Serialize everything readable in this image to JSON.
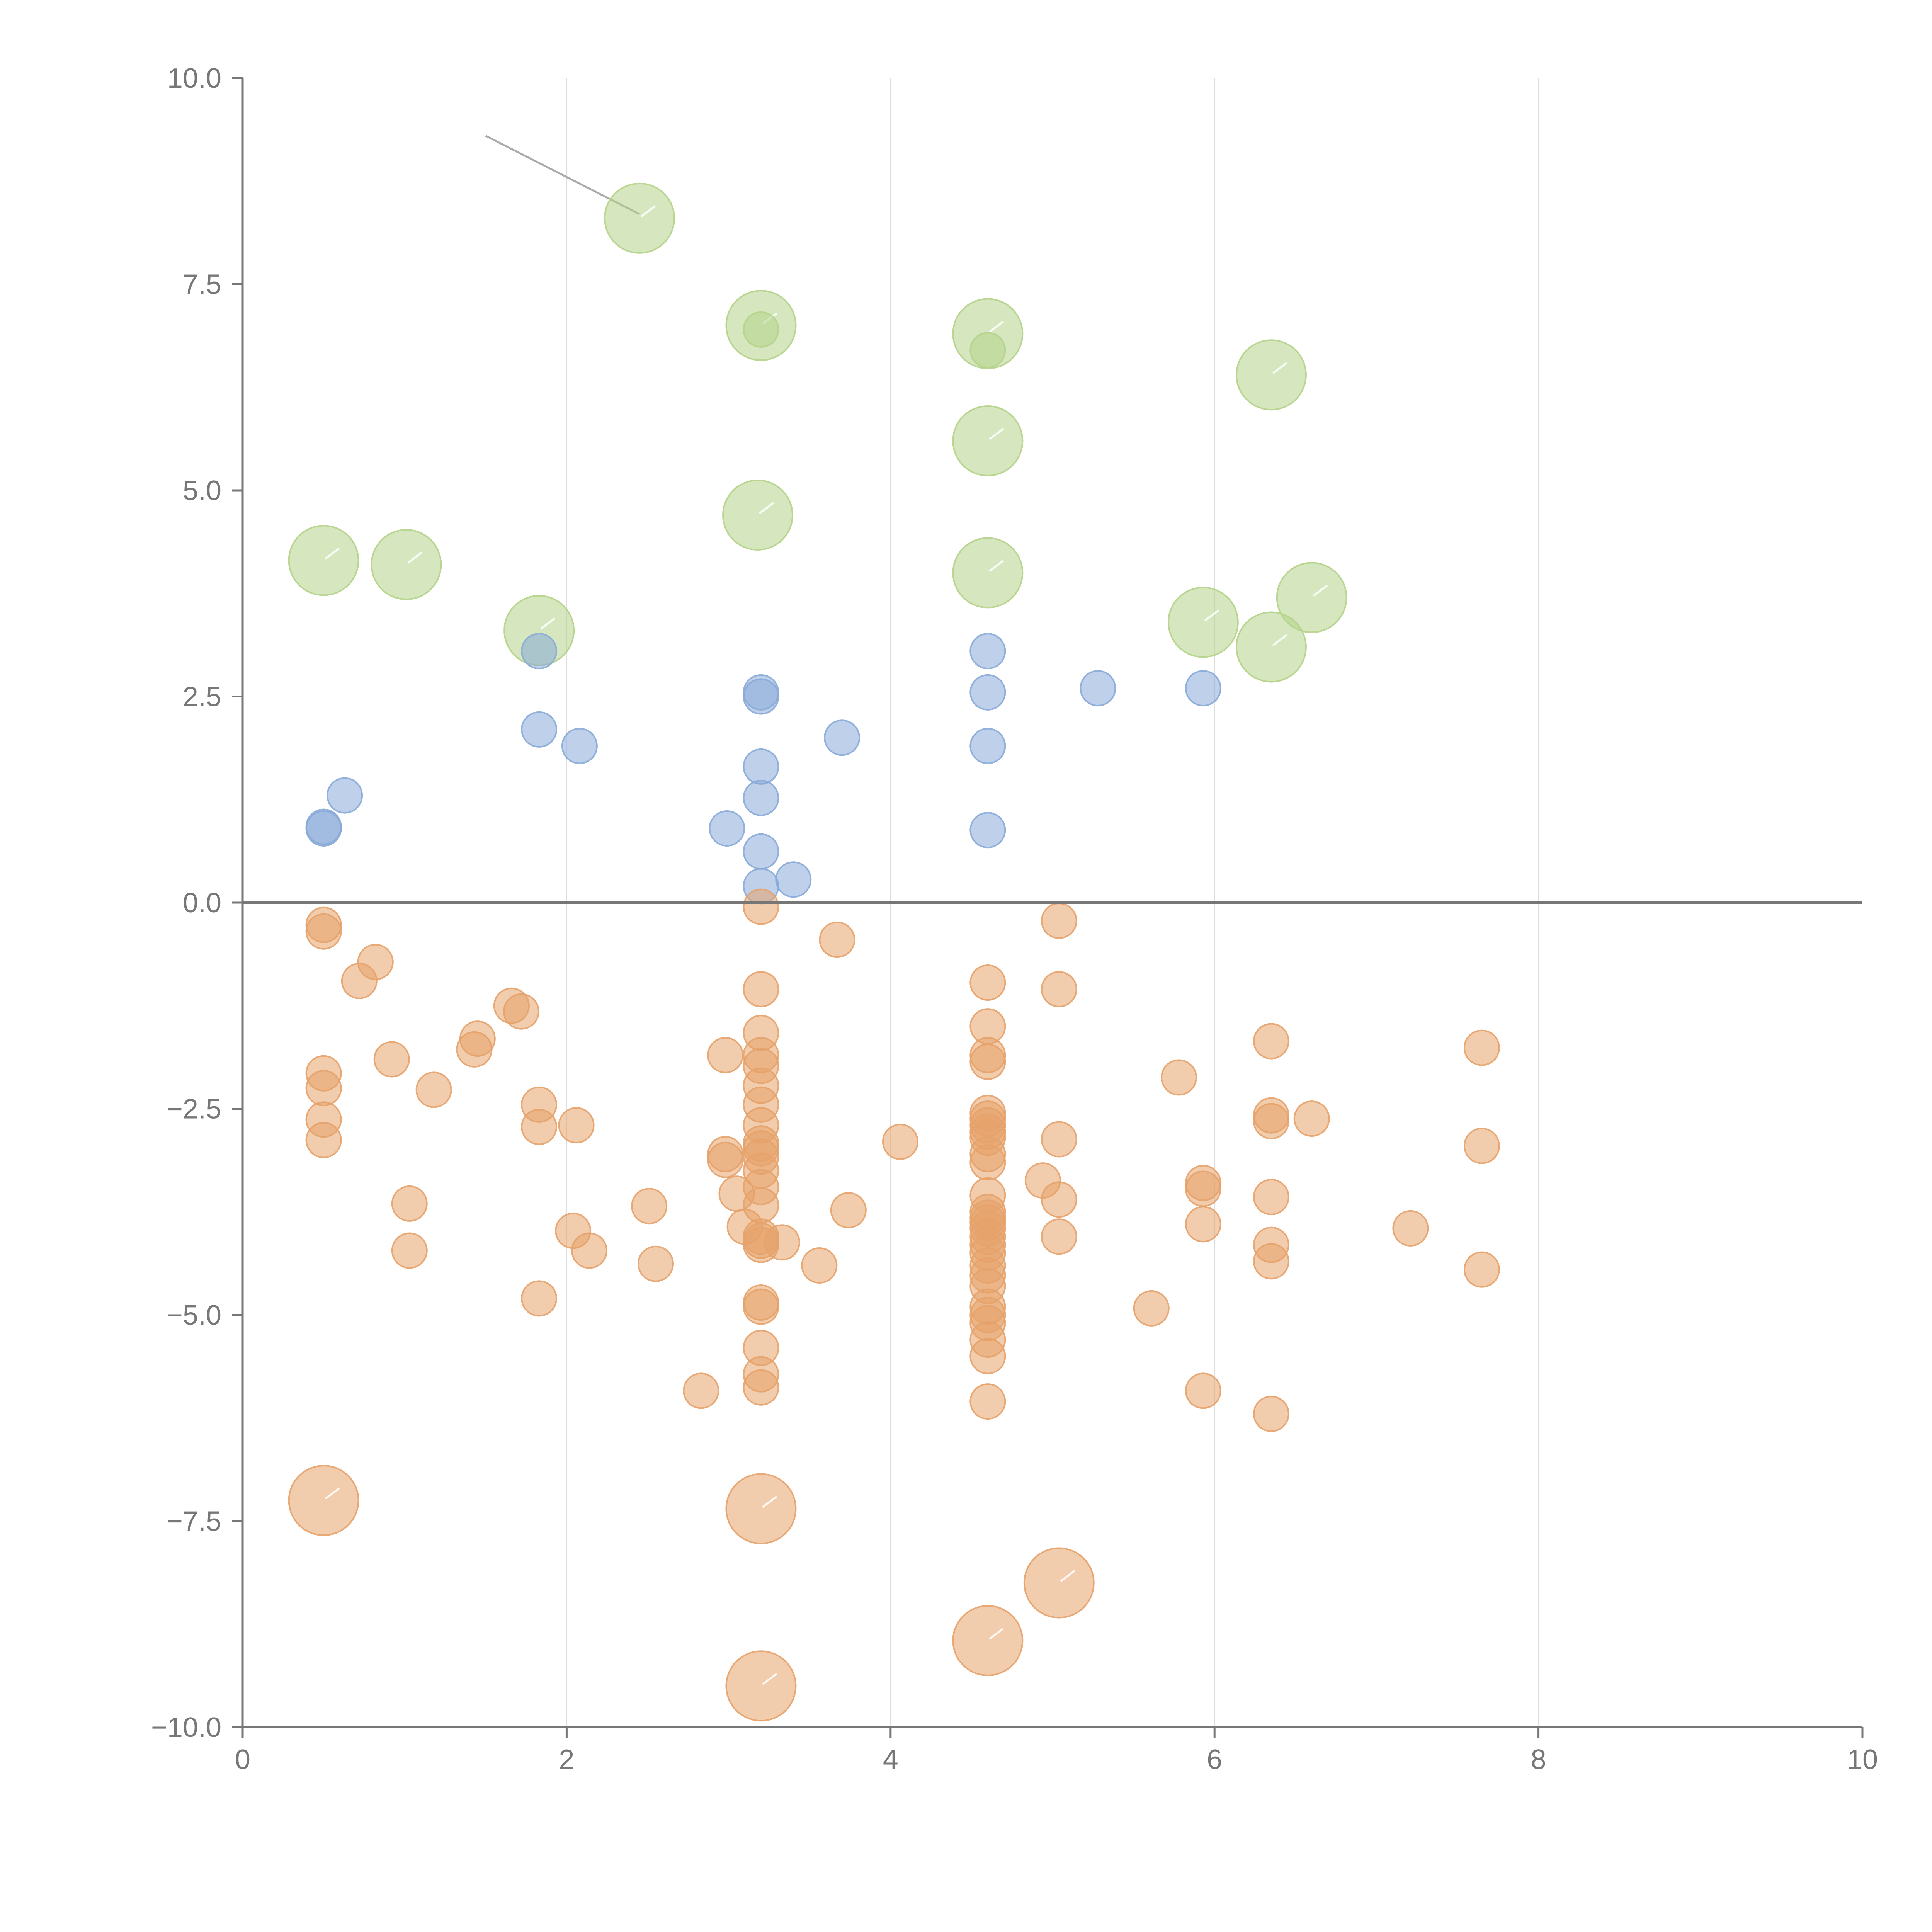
{
  "chart_data": {
    "type": "scatter",
    "title": "",
    "xlabel": "",
    "ylabel": "",
    "xlim": [
      0,
      10
    ],
    "ylim": [
      -10,
      10
    ],
    "x_ticks": [
      0,
      2,
      4,
      6,
      8,
      10
    ],
    "x_tick_labels": [
      "0",
      "2",
      "4",
      "6",
      "8",
      "10"
    ],
    "y_ticks": [
      -10,
      -7.5,
      -5,
      -2.5,
      0,
      2.5,
      5,
      7.5,
      10
    ],
    "y_tick_labels": [
      "−10.0",
      "−7.5",
      "−5.0",
      "−2.5",
      "0.0",
      "2.5",
      "5.0",
      "7.5",
      "10.0"
    ],
    "vertical_gridlines_at": [
      2,
      4,
      6,
      8
    ],
    "reference_line_y": 0,
    "colors": {
      "green": "#b5d38a",
      "blue": "#88aad8",
      "orange": "#e6a26a",
      "axis": "#777777",
      "grid": "#dddddd",
      "leader": "#aaaaaa"
    },
    "series": [
      {
        "name": "green",
        "color": "#b5d38a",
        "size": "large",
        "points": [
          {
            "x": 2.45,
            "y": 8.3
          },
          {
            "x": 3.2,
            "y": 7.0
          },
          {
            "x": 4.6,
            "y": 6.9
          },
          {
            "x": 6.35,
            "y": 6.4
          },
          {
            "x": 4.6,
            "y": 5.6
          },
          {
            "x": 3.18,
            "y": 4.7
          },
          {
            "x": 0.5,
            "y": 4.15
          },
          {
            "x": 1.01,
            "y": 4.1
          },
          {
            "x": 4.6,
            "y": 4.0
          },
          {
            "x": 6.6,
            "y": 3.7
          },
          {
            "x": 5.93,
            "y": 3.4
          },
          {
            "x": 1.83,
            "y": 3.3
          },
          {
            "x": 6.35,
            "y": 3.1
          },
          {
            "x": 3.2,
            "y": 6.95,
            "size": "small"
          },
          {
            "x": 4.6,
            "y": 6.7,
            "size": "small"
          }
        ]
      },
      {
        "name": "blue",
        "color": "#88aad8",
        "size": "small",
        "points": [
          {
            "x": 1.83,
            "y": 3.05
          },
          {
            "x": 4.6,
            "y": 3.05
          },
          {
            "x": 3.2,
            "y": 2.55
          },
          {
            "x": 3.2,
            "y": 2.5
          },
          {
            "x": 4.6,
            "y": 2.55
          },
          {
            "x": 5.28,
            "y": 2.6
          },
          {
            "x": 5.93,
            "y": 2.6
          },
          {
            "x": 1.83,
            "y": 2.1
          },
          {
            "x": 2.08,
            "y": 1.9
          },
          {
            "x": 3.7,
            "y": 2.0
          },
          {
            "x": 4.6,
            "y": 1.9
          },
          {
            "x": 3.2,
            "y": 1.65
          },
          {
            "x": 0.63,
            "y": 1.3
          },
          {
            "x": 3.2,
            "y": 1.27
          },
          {
            "x": 0.5,
            "y": 0.9
          },
          {
            "x": 0.5,
            "y": 0.92
          },
          {
            "x": 2.99,
            "y": 0.9
          },
          {
            "x": 4.6,
            "y": 0.88
          },
          {
            "x": 3.2,
            "y": 0.62
          },
          {
            "x": 3.4,
            "y": 0.28
          },
          {
            "x": 3.2,
            "y": 0.2
          }
        ]
      },
      {
        "name": "orange",
        "color": "#e6a26a",
        "size": "small",
        "points": [
          {
            "x": 3.2,
            "y": -0.05
          },
          {
            "x": 0.5,
            "y": -0.27
          },
          {
            "x": 0.5,
            "y": -0.35
          },
          {
            "x": 5.04,
            "y": -0.22
          },
          {
            "x": 3.67,
            "y": -0.45
          },
          {
            "x": 0.82,
            "y": -0.72
          },
          {
            "x": 0.72,
            "y": -0.95
          },
          {
            "x": 4.6,
            "y": -0.97
          },
          {
            "x": 3.2,
            "y": -1.05
          },
          {
            "x": 5.04,
            "y": -1.05
          },
          {
            "x": 1.66,
            "y": -1.25
          },
          {
            "x": 1.72,
            "y": -1.32
          },
          {
            "x": 4.6,
            "y": -1.5
          },
          {
            "x": 3.2,
            "y": -1.58
          },
          {
            "x": 1.45,
            "y": -1.65
          },
          {
            "x": 1.43,
            "y": -1.78
          },
          {
            "x": 6.35,
            "y": -1.68
          },
          {
            "x": 7.65,
            "y": -1.76
          },
          {
            "x": 3.2,
            "y": -1.85
          },
          {
            "x": 2.98,
            "y": -1.85
          },
          {
            "x": 4.6,
            "y": -1.85
          },
          {
            "x": 4.6,
            "y": -1.93
          },
          {
            "x": 0.92,
            "y": -1.9
          },
          {
            "x": 3.2,
            "y": -1.98
          },
          {
            "x": 0.5,
            "y": -2.07
          },
          {
            "x": 5.78,
            "y": -2.12
          },
          {
            "x": 3.2,
            "y": -2.22
          },
          {
            "x": 0.5,
            "y": -2.25
          },
          {
            "x": 1.18,
            "y": -2.27
          },
          {
            "x": 3.2,
            "y": -2.45
          },
          {
            "x": 1.83,
            "y": -2.45
          },
          {
            "x": 4.6,
            "y": -2.55
          },
          {
            "x": 4.6,
            "y": -2.62
          },
          {
            "x": 6.35,
            "y": -2.58
          },
          {
            "x": 6.6,
            "y": -2.62
          },
          {
            "x": 0.5,
            "y": -2.63
          },
          {
            "x": 6.35,
            "y": -2.65
          },
          {
            "x": 3.2,
            "y": -2.7
          },
          {
            "x": 4.6,
            "y": -2.7
          },
          {
            "x": 1.83,
            "y": -2.72
          },
          {
            "x": 2.06,
            "y": -2.7
          },
          {
            "x": 4.6,
            "y": -2.78
          },
          {
            "x": 4.6,
            "y": -2.85
          },
          {
            "x": 5.04,
            "y": -2.87
          },
          {
            "x": 0.5,
            "y": -2.88
          },
          {
            "x": 4.06,
            "y": -2.9
          },
          {
            "x": 3.2,
            "y": -2.92
          },
          {
            "x": 3.2,
            "y": -2.98
          },
          {
            "x": 7.65,
            "y": -2.95
          },
          {
            "x": 2.98,
            "y": -3.05
          },
          {
            "x": 4.6,
            "y": -3.05
          },
          {
            "x": 3.2,
            "y": -3.08
          },
          {
            "x": 2.98,
            "y": -3.12
          },
          {
            "x": 4.6,
            "y": -3.15
          },
          {
            "x": 3.2,
            "y": -3.25
          },
          {
            "x": 4.94,
            "y": -3.37
          },
          {
            "x": 5.93,
            "y": -3.4
          },
          {
            "x": 5.93,
            "y": -3.47
          },
          {
            "x": 3.2,
            "y": -3.45
          },
          {
            "x": 3.05,
            "y": -3.53
          },
          {
            "x": 4.6,
            "y": -3.55
          },
          {
            "x": 6.35,
            "y": -3.57
          },
          {
            "x": 5.04,
            "y": -3.6
          },
          {
            "x": 1.03,
            "y": -3.65
          },
          {
            "x": 2.51,
            "y": -3.68
          },
          {
            "x": 3.2,
            "y": -3.67
          },
          {
            "x": 4.6,
            "y": -3.75
          },
          {
            "x": 3.74,
            "y": -3.73
          },
          {
            "x": 4.6,
            "y": -3.82
          },
          {
            "x": 4.6,
            "y": -3.88
          },
          {
            "x": 5.93,
            "y": -3.9
          },
          {
            "x": 7.21,
            "y": -3.95
          },
          {
            "x": 3.1,
            "y": -3.93
          },
          {
            "x": 4.6,
            "y": -3.95
          },
          {
            "x": 2.04,
            "y": -3.98
          },
          {
            "x": 3.2,
            "y": -4.05
          },
          {
            "x": 5.04,
            "y": -4.05
          },
          {
            "x": 4.6,
            "y": -4.05
          },
          {
            "x": 3.2,
            "y": -4.1
          },
          {
            "x": 3.33,
            "y": -4.12
          },
          {
            "x": 3.2,
            "y": -4.15
          },
          {
            "x": 6.35,
            "y": -4.15
          },
          {
            "x": 4.6,
            "y": -4.15
          },
          {
            "x": 1.03,
            "y": -4.22
          },
          {
            "x": 2.14,
            "y": -4.22
          },
          {
            "x": 4.6,
            "y": -4.25
          },
          {
            "x": 6.35,
            "y": -4.35
          },
          {
            "x": 2.55,
            "y": -4.38
          },
          {
            "x": 3.56,
            "y": -4.4
          },
          {
            "x": 4.6,
            "y": -4.4
          },
          {
            "x": 7.65,
            "y": -4.45
          },
          {
            "x": 4.6,
            "y": -4.52
          },
          {
            "x": 4.6,
            "y": -4.65
          },
          {
            "x": 1.83,
            "y": -4.8
          },
          {
            "x": 3.2,
            "y": -4.85
          },
          {
            "x": 3.2,
            "y": -4.9
          },
          {
            "x": 4.6,
            "y": -4.9
          },
          {
            "x": 5.61,
            "y": -4.92
          },
          {
            "x": 4.6,
            "y": -5.0
          },
          {
            "x": 4.6,
            "y": -5.1
          },
          {
            "x": 4.6,
            "y": -5.3
          },
          {
            "x": 3.2,
            "y": -5.4
          },
          {
            "x": 4.6,
            "y": -5.5
          },
          {
            "x": 3.2,
            "y": -5.72
          },
          {
            "x": 3.2,
            "y": -5.88
          },
          {
            "x": 2.83,
            "y": -5.92
          },
          {
            "x": 5.93,
            "y": -5.92
          },
          {
            "x": 4.6,
            "y": -6.05
          },
          {
            "x": 6.35,
            "y": -6.2
          },
          {
            "x": 0.5,
            "y": -7.25,
            "size": "large"
          },
          {
            "x": 3.2,
            "y": -7.35,
            "size": "large"
          },
          {
            "x": 5.04,
            "y": -8.25,
            "size": "large"
          },
          {
            "x": 4.6,
            "y": -8.95,
            "size": "large"
          },
          {
            "x": 3.2,
            "y": -9.5,
            "size": "large"
          }
        ]
      }
    ],
    "annotation_leader": {
      "from": {
        "x": 1.5,
        "y": 9.3
      },
      "to": {
        "x": 2.45,
        "y": 8.35
      }
    }
  }
}
